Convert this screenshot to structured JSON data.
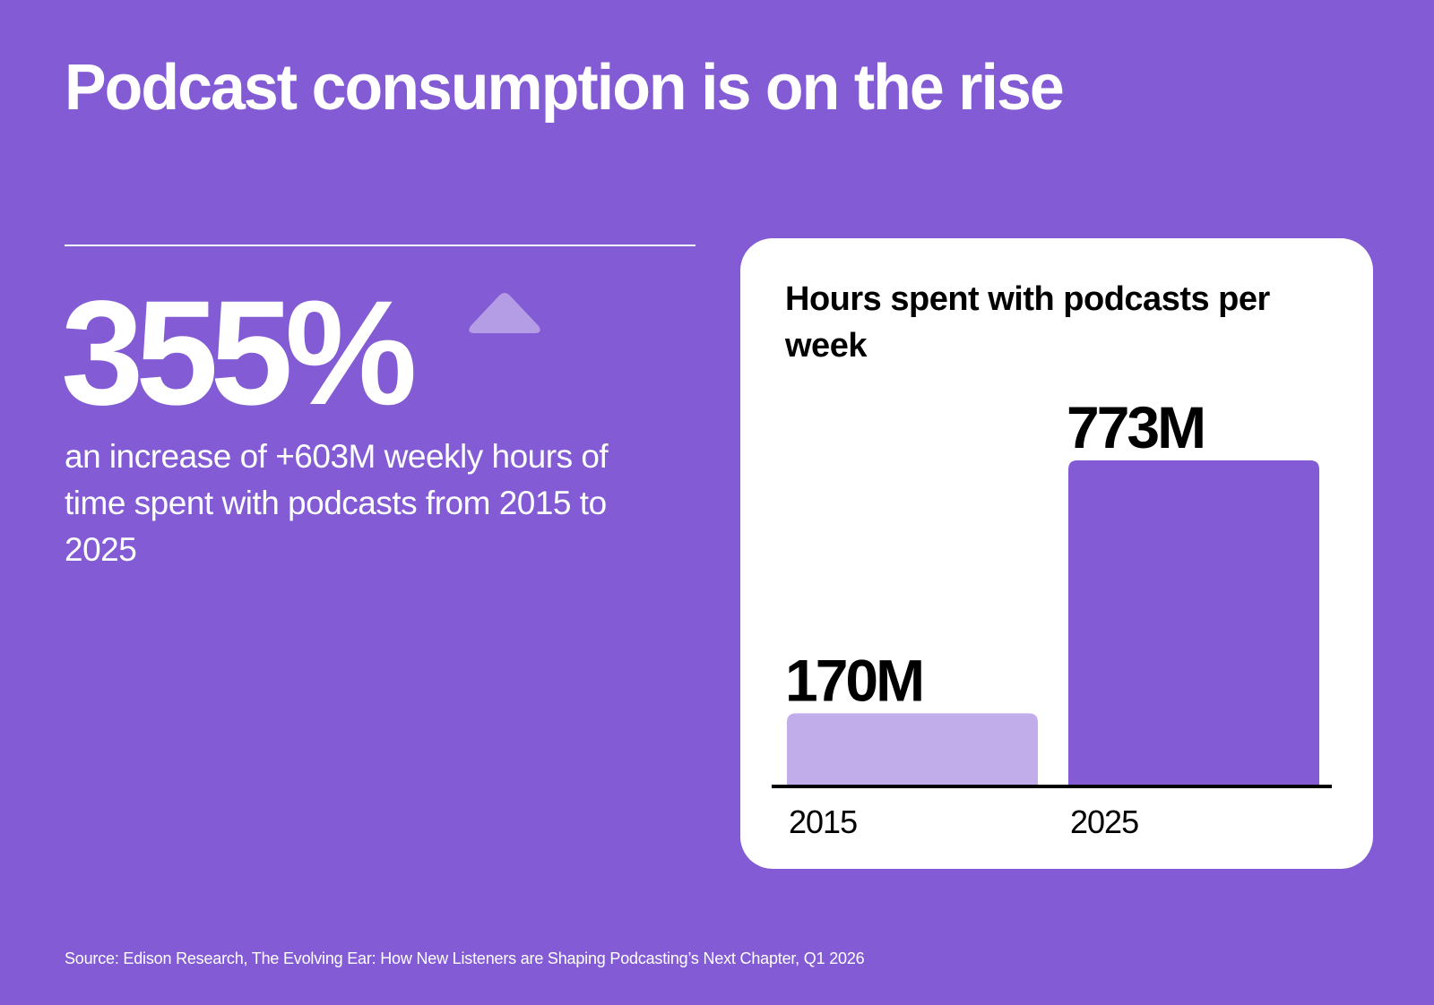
{
  "page": {
    "title": "Podcast consumption is on the rise",
    "big_stat": "355%",
    "stat_icon": "up-triangle-icon",
    "stat_description": "an increase of +603M weekly hours of time spent with podcasts from 2015 to 2025",
    "source": "Source: Edison Research, The Evolving Ear: How New Listeners are Shaping Podcasting’s Next Chapter, Q1 2026",
    "colors": {
      "background": "#825BD5",
      "bar_2015": "#C2ADEB",
      "bar_2025": "#825BD5",
      "up_icon": "#B59DE6",
      "text_dark": "#000000",
      "text_light": "#FFFFFF"
    }
  },
  "chart_data": {
    "type": "bar",
    "title": "Hours spent with podcasts per week",
    "categories": [
      "2015",
      "2025"
    ],
    "values": [
      170,
      773
    ],
    "unit": "M",
    "data_labels": [
      "170M",
      "773M"
    ],
    "xlabel": "",
    "ylabel": "",
    "ylim": [
      0,
      773
    ],
    "grid": false,
    "legend": "none"
  }
}
